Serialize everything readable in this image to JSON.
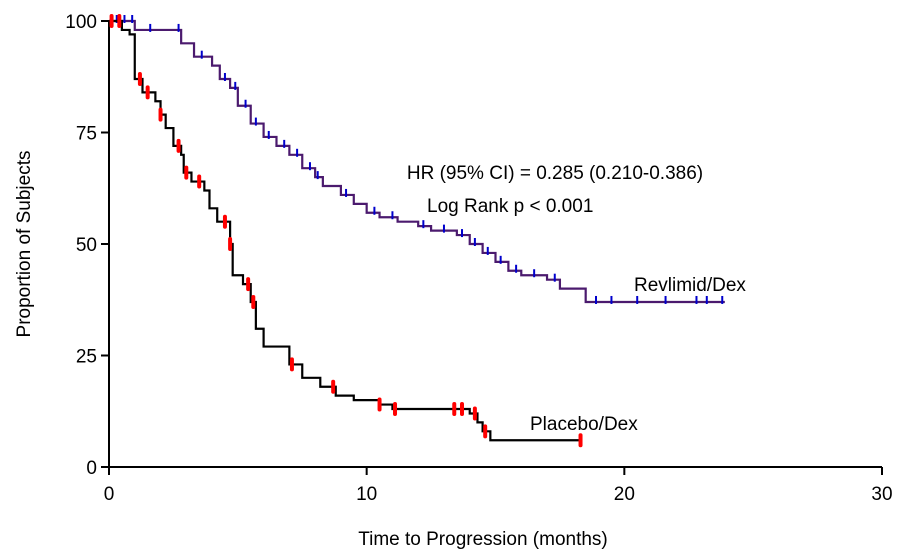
{
  "chart_data": {
    "type": "step",
    "x_label": "Time to Progression (months)",
    "y_label": "Proportion of Subjects",
    "xlim": [
      0,
      30
    ],
    "xticks": [
      0,
      10,
      20,
      30
    ],
    "ylim": [
      0,
      100
    ],
    "yticks": [
      0,
      25,
      50,
      75,
      100
    ],
    "annotations": [
      "HR (95% CI) = 0.285 (0.210-0.386)",
      "Log Rank p < 0.001"
    ],
    "series": [
      {
        "name": "Revlimid/Dex",
        "color": "#4b1a6e",
        "censor_color": "#0000cc",
        "x": [
          0,
          1.0,
          2.8,
          3.3,
          4.0,
          4.3,
          4.7,
          5.0,
          5.5,
          6.0,
          6.5,
          7.0,
          7.5,
          8.0,
          8.3,
          9.0,
          9.5,
          10.0,
          10.5,
          11.2,
          12.0,
          12.5,
          13.5,
          14.0,
          14.5,
          15.0,
          15.5,
          16.0,
          17.0,
          17.5,
          18.5,
          23.9
        ],
        "values": [
          100,
          98,
          95,
          92,
          90,
          87,
          85,
          81,
          77,
          74,
          72,
          70,
          67,
          65,
          63,
          61,
          59,
          57,
          56,
          55,
          54,
          53,
          52,
          50,
          48,
          46,
          44,
          43,
          42,
          40,
          37,
          37
        ],
        "censor_x": [
          0.3,
          0.6,
          0.9,
          1.6,
          2.7,
          3.6,
          4.5,
          4.9,
          5.3,
          5.7,
          6.2,
          6.8,
          7.3,
          7.8,
          8.1,
          9.2,
          10.3,
          11.0,
          12.2,
          13.0,
          13.7,
          14.2,
          14.7,
          15.2,
          15.8,
          16.5,
          17.3,
          18.9,
          19.5,
          20.5,
          21.6,
          22.8,
          23.2,
          23.8
        ],
        "censor_values": [
          100,
          100,
          100,
          98,
          98,
          92,
          87,
          85,
          81,
          77,
          74,
          72,
          70,
          67,
          65,
          61,
          57,
          56,
          54,
          53,
          52,
          50,
          48,
          46,
          44,
          43,
          42,
          37,
          37,
          37,
          37,
          37,
          37,
          37
        ]
      },
      {
        "name": "Placebo/Dex",
        "color": "#000000",
        "censor_color": "#ff0000",
        "x": [
          0,
          0.5,
          0.8,
          1.0,
          1.3,
          1.8,
          2.0,
          2.2,
          2.5,
          2.8,
          2.9,
          3.2,
          3.7,
          3.9,
          4.2,
          4.7,
          4.8,
          5.2,
          5.5,
          5.7,
          6.0,
          7.0,
          7.5,
          8.2,
          8.8,
          9.5,
          10.5,
          11.0,
          14.0,
          14.3,
          14.5,
          14.8,
          18.3
        ],
        "values": [
          100,
          98,
          97,
          87,
          84,
          82,
          79,
          76,
          72,
          70,
          66,
          64,
          62,
          58,
          55,
          50,
          43,
          41,
          37,
          31,
          27,
          23,
          20,
          18,
          16,
          15,
          14,
          13,
          12,
          10,
          8,
          6,
          6
        ],
        "censor_x": [
          0.1,
          0.4,
          1.2,
          1.5,
          2.0,
          2.7,
          3.0,
          3.5,
          4.5,
          4.7,
          5.4,
          5.6,
          7.1,
          8.7,
          10.5,
          11.1,
          13.4,
          13.7,
          14.2,
          14.6,
          18.3
        ],
        "censor_values": [
          100,
          100,
          87,
          84,
          79,
          72,
          66,
          64,
          55,
          50,
          41,
          37,
          23,
          18,
          14,
          13,
          13,
          13,
          12,
          8,
          6
        ]
      }
    ]
  }
}
